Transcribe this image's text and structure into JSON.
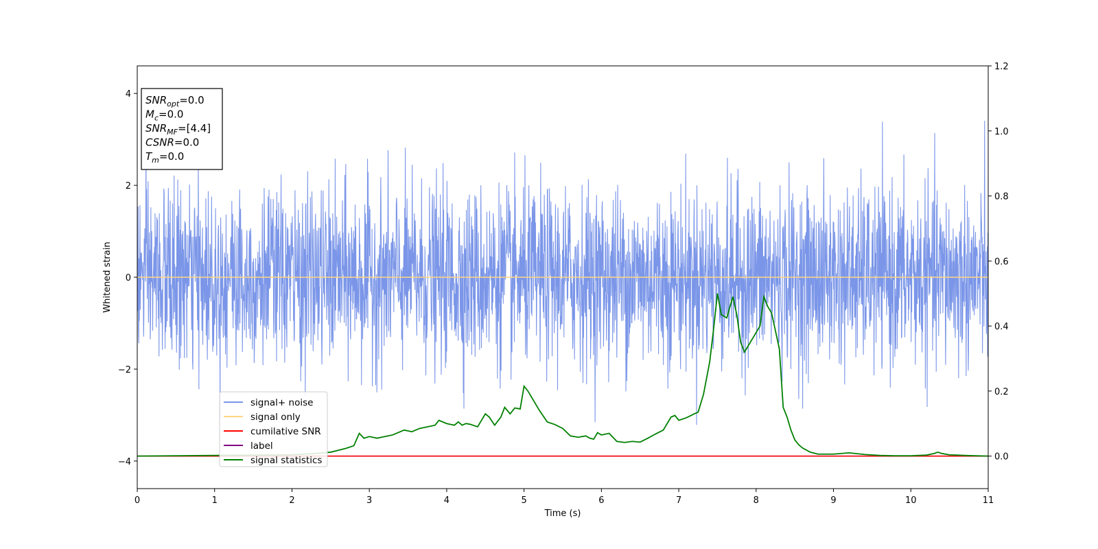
{
  "chart_data": {
    "type": "line",
    "xlabel": "Time (s)",
    "ylabel": "Whitened strain",
    "xlim": [
      0,
      11
    ],
    "ylim_left": [
      -4.6,
      4.6
    ],
    "ylim_right": [
      -0.1,
      1.2
    ],
    "x_ticks": [
      "0",
      "1",
      "2",
      "3",
      "4",
      "5",
      "6",
      "7",
      "8",
      "9",
      "10",
      "11"
    ],
    "y_left_ticks": [
      "−4",
      "−2",
      "0",
      "2",
      "4"
    ],
    "y_right_ticks": [
      "0.0",
      "0.2",
      "0.4",
      "0.6",
      "0.8",
      "1.0",
      "1.2"
    ],
    "grid": false,
    "legend_position": "lower-left",
    "info_box": {
      "lines": [
        {
          "main": "SNR",
          "sub": "opt",
          "value": "=0.0"
        },
        {
          "main": "M",
          "sub": "c",
          "value": "=0.0"
        },
        {
          "main": "SNR",
          "sub": "MF",
          "value": "=[4.4]"
        },
        {
          "main": "CSNR",
          "sub": "",
          "value": "=0.0"
        },
        {
          "main": "T",
          "sub": "m",
          "value": "=0.0"
        }
      ]
    },
    "series": [
      {
        "name": "signal+ noise",
        "color": "#7b96e8",
        "axis": "left",
        "kind": "noise",
        "sigma": 0.95,
        "sample_rate": 256
      },
      {
        "name": "signal only",
        "color": "#ffd580",
        "axis": "left",
        "x": [
          0,
          11
        ],
        "values": [
          0,
          0
        ]
      },
      {
        "name": "cumilative SNR",
        "color": "#ff0000",
        "axis": "right",
        "x": [
          0,
          11
        ],
        "values": [
          0,
          0
        ]
      },
      {
        "name": "label",
        "color": "#800080",
        "axis": "right",
        "x": [
          0,
          11
        ],
        "values": [
          0,
          0
        ]
      },
      {
        "name": "signal statistics",
        "color": "#008000",
        "axis": "right",
        "x": [
          0,
          0.5,
          1.0,
          1.5,
          2.0,
          2.3,
          2.5,
          2.6,
          2.7,
          2.8,
          2.87,
          2.93,
          3.0,
          3.1,
          3.2,
          3.3,
          3.35,
          3.45,
          3.55,
          3.65,
          3.75,
          3.85,
          3.9,
          4.0,
          4.1,
          4.15,
          4.2,
          4.25,
          4.3,
          4.4,
          4.5,
          4.55,
          4.62,
          4.7,
          4.75,
          4.82,
          4.88,
          4.95,
          5.0,
          5.05,
          5.1,
          5.2,
          5.3,
          5.4,
          5.5,
          5.6,
          5.7,
          5.8,
          5.85,
          5.9,
          5.95,
          6.0,
          6.1,
          6.2,
          6.3,
          6.4,
          6.5,
          6.6,
          6.7,
          6.8,
          6.9,
          6.95,
          7.0,
          7.1,
          7.2,
          7.25,
          7.32,
          7.4,
          7.45,
          7.5,
          7.55,
          7.62,
          7.7,
          7.75,
          7.8,
          7.85,
          7.9,
          7.95,
          8.0,
          8.05,
          8.1,
          8.15,
          8.2,
          8.3,
          8.35,
          8.4,
          8.45,
          8.5,
          8.55,
          8.6,
          8.7,
          8.8,
          9.0,
          9.2,
          9.4,
          9.6,
          9.8,
          10.0,
          10.2,
          10.3,
          10.35,
          10.4,
          10.5,
          10.7,
          11.0
        ],
        "values": [
          0.0,
          0.001,
          0.002,
          0.003,
          0.004,
          0.008,
          0.012,
          0.018,
          0.024,
          0.032,
          0.07,
          0.055,
          0.06,
          0.055,
          0.06,
          0.065,
          0.07,
          0.08,
          0.075,
          0.085,
          0.09,
          0.095,
          0.11,
          0.1,
          0.095,
          0.105,
          0.095,
          0.1,
          0.098,
          0.09,
          0.13,
          0.12,
          0.095,
          0.12,
          0.15,
          0.13,
          0.148,
          0.145,
          0.215,
          0.2,
          0.18,
          0.14,
          0.105,
          0.097,
          0.085,
          0.062,
          0.058,
          0.062,
          0.055,
          0.052,
          0.072,
          0.065,
          0.07,
          0.045,
          0.042,
          0.045,
          0.043,
          0.055,
          0.068,
          0.08,
          0.12,
          0.125,
          0.11,
          0.118,
          0.13,
          0.135,
          0.19,
          0.29,
          0.39,
          0.5,
          0.435,
          0.425,
          0.49,
          0.435,
          0.35,
          0.32,
          0.34,
          0.36,
          0.38,
          0.4,
          0.49,
          0.46,
          0.44,
          0.33,
          0.15,
          0.12,
          0.08,
          0.05,
          0.035,
          0.025,
          0.012,
          0.006,
          0.006,
          0.01,
          0.005,
          0.002,
          0.001,
          0.001,
          0.003,
          0.008,
          0.012,
          0.008,
          0.004,
          0.002,
          0.0
        ]
      }
    ]
  }
}
